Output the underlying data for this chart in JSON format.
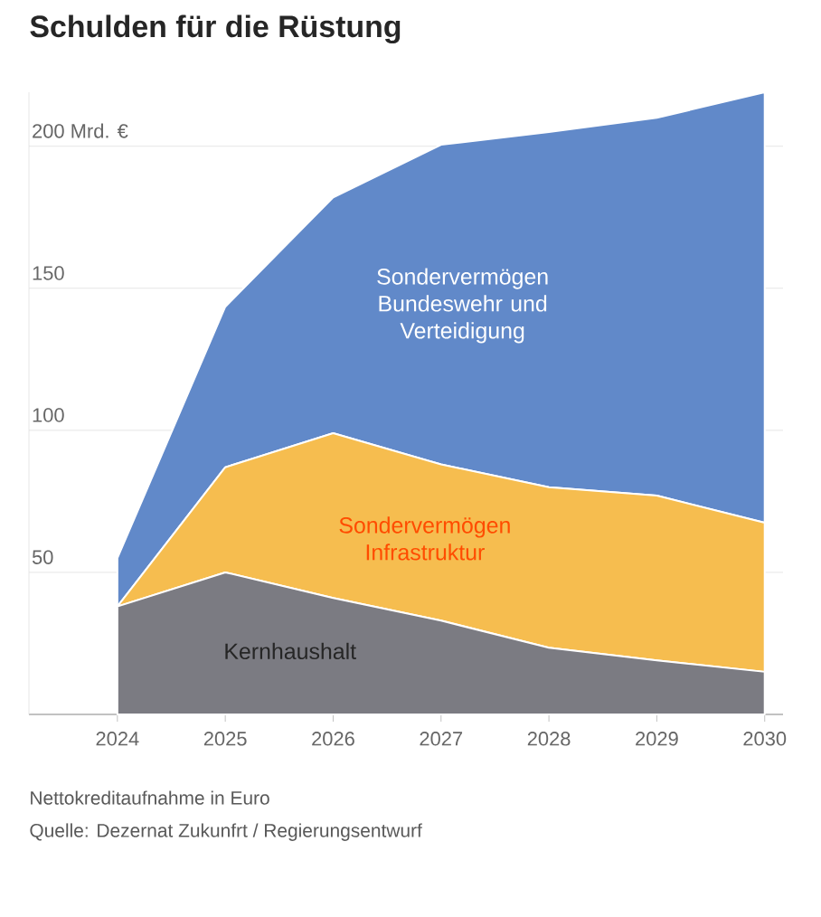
{
  "chart_data": {
    "type": "area",
    "title": "Schulden für die Rüstung",
    "x": [
      2024,
      2025,
      2026,
      2027,
      2028,
      2029,
      2030
    ],
    "stacked": true,
    "series": [
      {
        "name": "Kernhaushalt",
        "color": "#7b7b82",
        "values": [
          38,
          50,
          41,
          33,
          23.5,
          19,
          15
        ]
      },
      {
        "name": "Sondervermögen Infrastruktur",
        "color": "#f6bd4f",
        "values": [
          0,
          37,
          58,
          55,
          56.5,
          58,
          52.5
        ]
      },
      {
        "name": "Sondervermögen Bundeswehr und Verteidigung",
        "color": "#6189c9",
        "values": [
          17,
          56.5,
          83,
          112.5,
          125,
          133,
          151.5
        ]
      }
    ],
    "xlim": [
      2023.18,
      2030.17
    ],
    "ylim": [
      0,
      219
    ],
    "xticks": [
      2024,
      2025,
      2026,
      2027,
      2028,
      2029,
      2030
    ],
    "yticks": [
      50,
      100,
      150,
      {
        "value": 200,
        "label": "200 Mrd. €"
      }
    ],
    "grid": "y",
    "annotations": [
      "Nettokreditaufnahme in Euro",
      "Quelle: Dezernat Zukunfrt / Regierungsentwurf"
    ]
  }
}
